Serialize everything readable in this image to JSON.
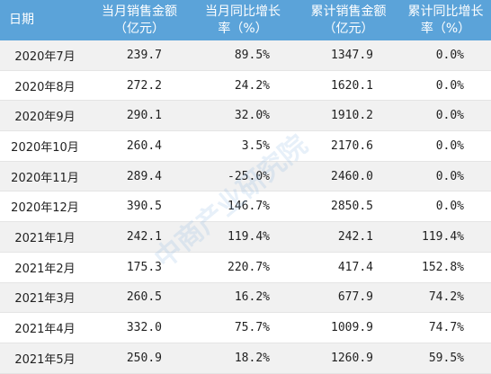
{
  "table": {
    "header": [
      [
        "日期"
      ],
      [
        "当月销售金额",
        "（亿元）"
      ],
      [
        "当月同比增长",
        "率（%）"
      ],
      [
        "累计销售金额",
        "（亿元）"
      ],
      [
        "累计同比增长",
        "率（%）"
      ]
    ],
    "rows": [
      [
        "2020年7月",
        "239.7",
        "89.5%",
        "1347.9",
        "0.0%"
      ],
      [
        "2020年8月",
        "272.2",
        "24.2%",
        "1620.1",
        "0.0%"
      ],
      [
        "2020年9月",
        "290.1",
        "32.0%",
        "1910.2",
        "0.0%"
      ],
      [
        "2020年10月",
        "260.4",
        "3.5%",
        "2170.6",
        "0.0%"
      ],
      [
        "2020年11月",
        "289.4",
        "-25.0%",
        "2460.0",
        "0.0%"
      ],
      [
        "2020年12月",
        "390.5",
        "146.7%",
        "2850.5",
        "0.0%"
      ],
      [
        "2021年1月",
        "242.1",
        "119.4%",
        "242.1",
        "119.4%"
      ],
      [
        "2021年2月",
        "175.3",
        "220.7%",
        "417.4",
        "152.8%"
      ],
      [
        "2021年3月",
        "260.5",
        "16.2%",
        "677.9",
        "74.2%"
      ],
      [
        "2021年4月",
        "332.0",
        "75.7%",
        "1009.9",
        "74.7%"
      ],
      [
        "2021年5月",
        "250.9",
        "18.2%",
        "1260.9",
        "59.5%"
      ]
    ]
  },
  "watermark": "中商产业研究院"
}
